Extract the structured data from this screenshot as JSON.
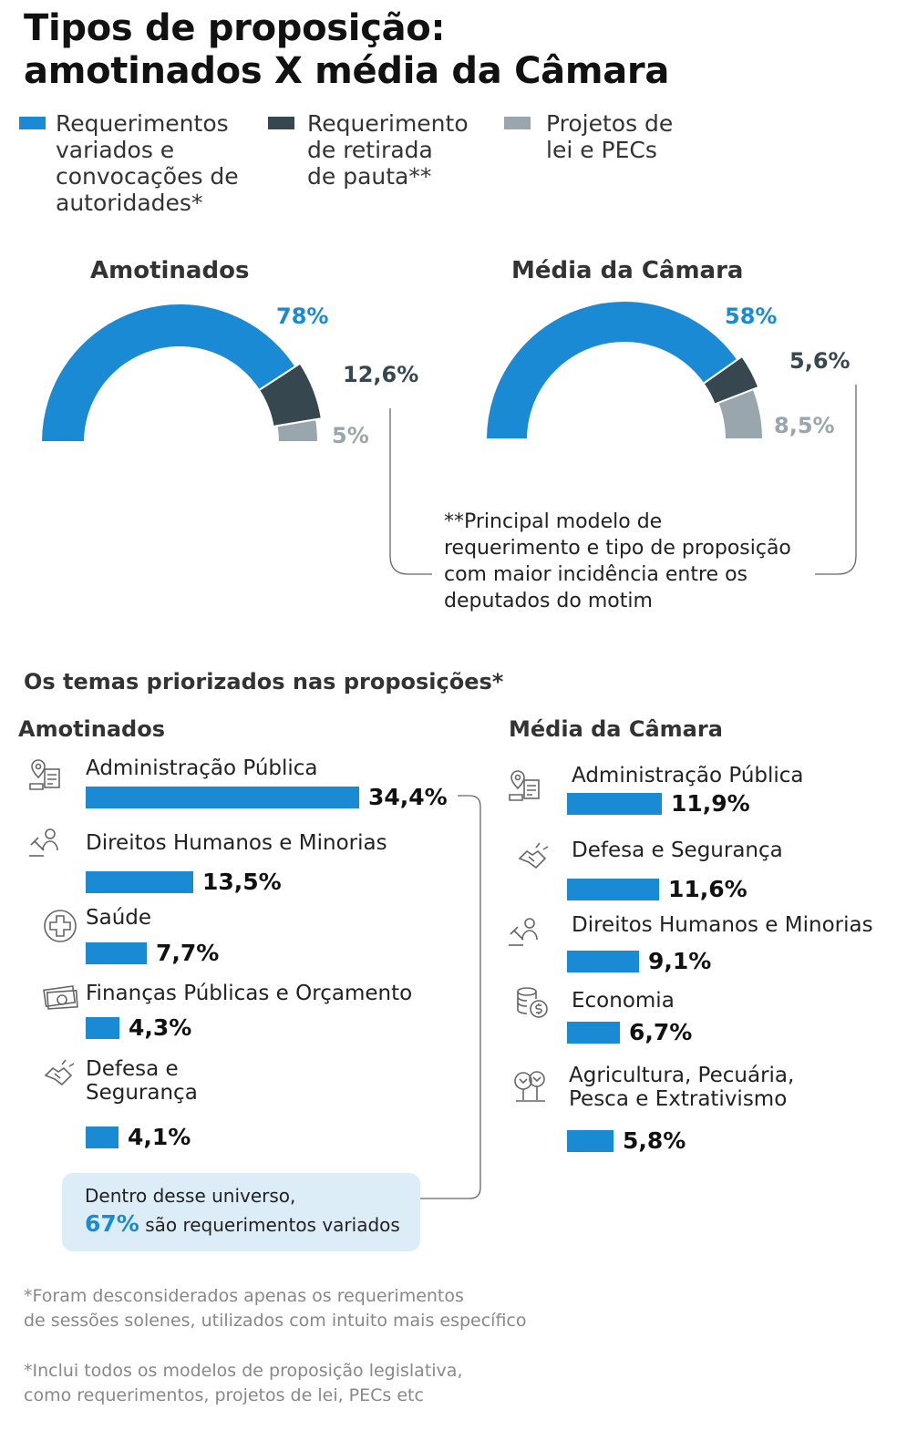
{
  "title_line1": "Tipos de proposição:",
  "title_line2": "amotinados X média da Câmara",
  "colors": {
    "blue": "#1a8ad4",
    "dark": "#37474f",
    "gray": "#9aa6ae"
  },
  "legend": [
    {
      "label": "Requerimentos\nvariados e\nconvocações de\nautoridades*",
      "color": "#1a8ad4"
    },
    {
      "label": "Requerimento\nde retirada\nde pauta**",
      "color": "#37474f"
    },
    {
      "label": "Projetos de\nlei e PECs",
      "color": "#9aa6ae"
    }
  ],
  "donuts": {
    "left": {
      "title": "Amotinados",
      "labels": [
        "78%",
        "12,6%",
        "5%"
      ]
    },
    "right": {
      "title": "Média da Câmara",
      "labels": [
        "58%",
        "5,6%",
        "8,5%"
      ]
    }
  },
  "note": "**Principal modelo de\nrequerimento e tipo de proposição\ncom maior incidência entre os\ndeputados do motim",
  "themes_title": "Os temas priorizados nas proposições*",
  "themes": {
    "left_title": "Amotinados",
    "right_title": "Média da Câmara",
    "left": [
      {
        "label": "Administração Pública",
        "value": 34.4,
        "value_label": "34,4%",
        "icon": "map-document-icon"
      },
      {
        "label": "Direitos Humanos e Minorias",
        "value": 13.5,
        "value_label": "13,5%",
        "icon": "justice-people-icon"
      },
      {
        "label": "Saúde",
        "value": 7.7,
        "value_label": "7,7%",
        "icon": "health-cross-icon"
      },
      {
        "label": "Finanças Públicas e Orçamento",
        "value": 4.3,
        "value_label": "4,3%",
        "icon": "money-bills-icon"
      },
      {
        "label": "Defesa e\nSegurança",
        "value": 4.1,
        "value_label": "4,1%",
        "icon": "handshake-icon"
      }
    ],
    "right": [
      {
        "label": "Administração Pública",
        "value": 11.9,
        "value_label": "11,9%",
        "icon": "map-document-icon"
      },
      {
        "label": "Defesa e Segurança",
        "value": 11.6,
        "value_label": "11,6%",
        "icon": "handshake-icon"
      },
      {
        "label": "Direitos Humanos e Minorias",
        "value": 9.1,
        "value_label": "9,1%",
        "icon": "justice-people-icon"
      },
      {
        "label": "Economia",
        "value": 6.7,
        "value_label": "6,7%",
        "icon": "coins-icon"
      },
      {
        "label": "Agricultura, Pecuária,\nPesca e Extrativismo",
        "value": 5.8,
        "value_label": "5,8%",
        "icon": "trees-icon"
      }
    ]
  },
  "callout": {
    "line1": "Dentro desse universo,",
    "highlight": "67%",
    "line2_rest": "são requerimentos variados"
  },
  "footnote1": "*Foram desconsiderados apenas os requerimentos\nde sessões solenes, utilizados com intuito mais específico",
  "footnote2": "*Inclui todos os modelos de proposição legislativa,\ncomo requerimentos, projetos de lei, PECs etc",
  "chart_data": [
    {
      "type": "pie",
      "title": "Amotinados",
      "categories": [
        "Requerimentos variados e convocações de autoridades",
        "Requerimento de retirada de pauta",
        "Projetos de lei e PECs"
      ],
      "values": [
        78,
        12.6,
        5
      ],
      "value_labels": [
        "78%",
        "12,6%",
        "5%"
      ]
    },
    {
      "type": "pie",
      "title": "Média da Câmara",
      "categories": [
        "Requerimentos variados e convocações de autoridades",
        "Requerimento de retirada de pauta",
        "Projetos de lei e PECs"
      ],
      "values": [
        58,
        5.6,
        8.5
      ],
      "value_labels": [
        "58%",
        "5,6%",
        "8,5%"
      ]
    },
    {
      "type": "bar",
      "title": "Amotinados",
      "categories": [
        "Administração Pública",
        "Direitos Humanos e Minorias",
        "Saúde",
        "Finanças Públicas e Orçamento",
        "Defesa e Segurança"
      ],
      "values": [
        34.4,
        13.5,
        7.7,
        4.3,
        4.1
      ]
    },
    {
      "type": "bar",
      "title": "Média da Câmara",
      "categories": [
        "Administração Pública",
        "Defesa e Segurança",
        "Direitos Humanos e Minorias",
        "Economia",
        "Agricultura, Pecuária, Pesca e Extrativismo"
      ],
      "values": [
        11.9,
        11.6,
        9.1,
        6.7,
        5.8
      ]
    }
  ]
}
